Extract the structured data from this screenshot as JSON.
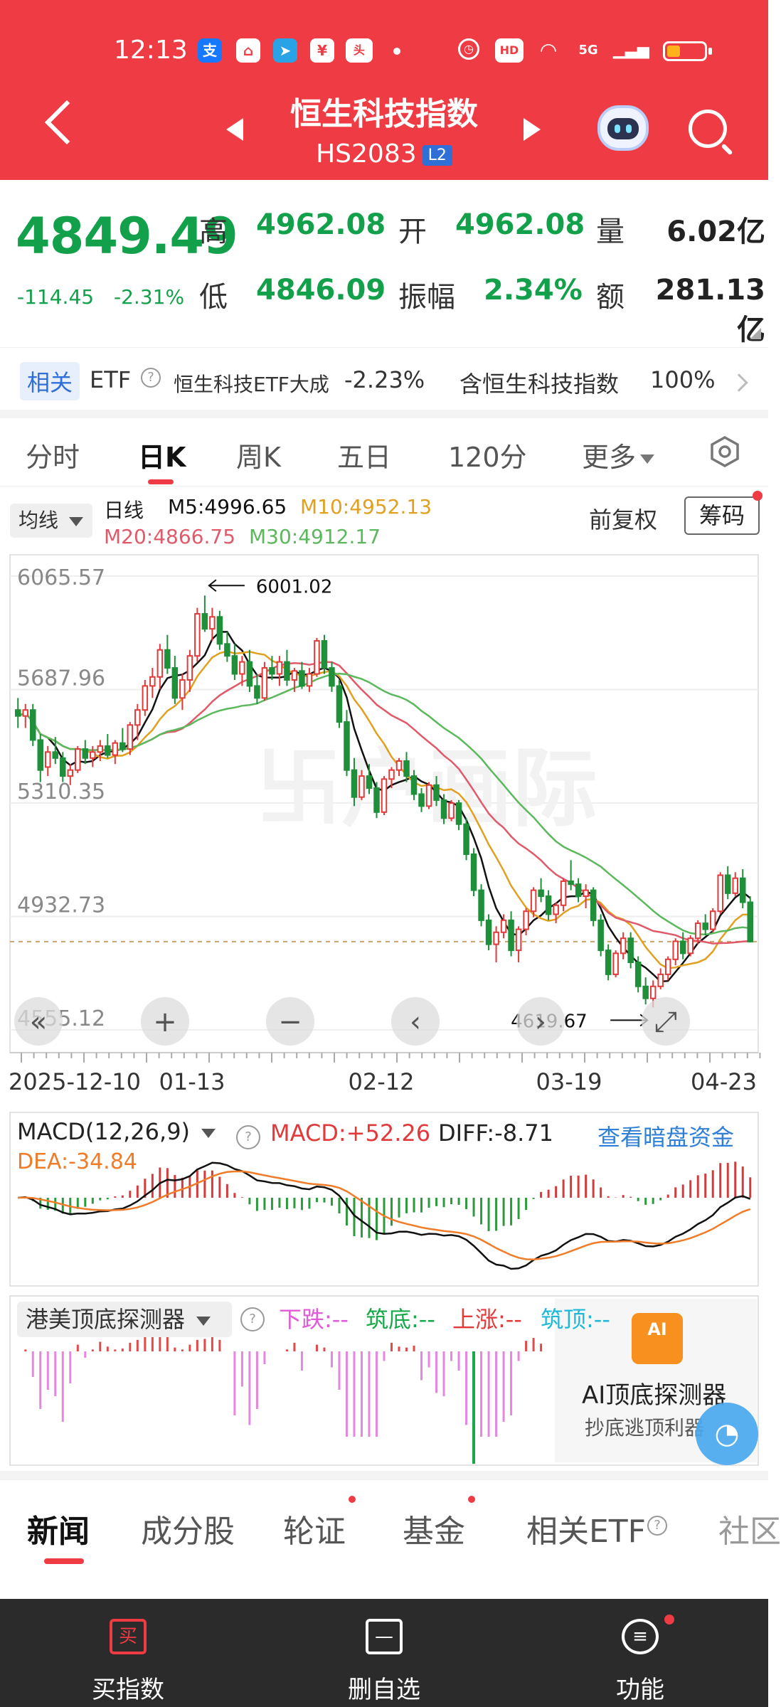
{
  "status_bar": {
    "time": "12:13",
    "icons": [
      "alipay-icon",
      "app-icon",
      "telegram-icon",
      "wallet-icon",
      "toutiao-icon"
    ],
    "right_icons": [
      "alarm-icon",
      "hd-icon",
      "wifi-icon",
      "5g-signal-icon",
      "signal-icon",
      "battery-icon"
    ],
    "hd_label": "HD",
    "net_label": "5G"
  },
  "header": {
    "title": "恒生科技指数",
    "code": "HS2083",
    "level_badge": "L2"
  },
  "quote": {
    "price": "4849.49",
    "change": "-114.45",
    "change_pct": "-2.31%",
    "high_label": "高",
    "high": "4962.08",
    "open_label": "开",
    "open": "4962.08",
    "volume_label": "量",
    "volume": "6.02亿",
    "low_label": "低",
    "low": "4846.09",
    "amplitude_label": "振幅",
    "amplitude": "2.34%",
    "amount_label": "额",
    "amount": "281.13亿"
  },
  "etf": {
    "tag": "相关",
    "etf_label": "ETF",
    "name": "恒生科技ETF大成",
    "change": "-2.23%",
    "contain_label": "含恒生科技指数",
    "contain_pct": "100%"
  },
  "period_tabs": [
    "分时",
    "日K",
    "周K",
    "五日",
    "120分",
    "更多"
  ],
  "ma_legend": {
    "selector": "均线",
    "daily": "日线",
    "m5": "M5:4996.65",
    "m10": "M10:4952.13",
    "m20": "M20:4866.75",
    "m30": "M30:4912.17",
    "adjust": "前复权",
    "chips": "筹码"
  },
  "chart_data": {
    "type": "candlestick",
    "y_axis_labels": [
      "6065.57",
      "5687.96",
      "5310.35",
      "4932.73",
      "4555.12"
    ],
    "ylim": [
      4555.12,
      6065.57
    ],
    "x_axis_labels": [
      "2025-12-10",
      "01-13",
      "02-12",
      "03-19",
      "04-23"
    ],
    "max_annotation": "6001.02",
    "min_annotation": "4619.67",
    "series": [
      {
        "name": "M5",
        "color": "#111111"
      },
      {
        "name": "M10",
        "color": "#e0a020"
      },
      {
        "name": "M20",
        "color": "#e05a6a"
      },
      {
        "name": "M30",
        "color": "#5cb85c"
      }
    ],
    "candles": [
      [
        5620,
        5660,
        5560,
        5600
      ],
      [
        5600,
        5640,
        5560,
        5620
      ],
      [
        5620,
        5640,
        5500,
        5520
      ],
      [
        5520,
        5540,
        5380,
        5420
      ],
      [
        5430,
        5500,
        5400,
        5480
      ],
      [
        5480,
        5530,
        5440,
        5460
      ],
      [
        5460,
        5480,
        5380,
        5400
      ],
      [
        5400,
        5440,
        5370,
        5420
      ],
      [
        5420,
        5500,
        5410,
        5490
      ],
      [
        5490,
        5520,
        5440,
        5460
      ],
      [
        5460,
        5500,
        5430,
        5480
      ],
      [
        5480,
        5520,
        5450,
        5500
      ],
      [
        5500,
        5540,
        5460,
        5470
      ],
      [
        5470,
        5520,
        5440,
        5510
      ],
      [
        5510,
        5560,
        5480,
        5490
      ],
      [
        5490,
        5580,
        5470,
        5570
      ],
      [
        5570,
        5640,
        5520,
        5620
      ],
      [
        5620,
        5720,
        5600,
        5700
      ],
      [
        5700,
        5760,
        5660,
        5730
      ],
      [
        5730,
        5840,
        5690,
        5820
      ],
      [
        5820,
        5870,
        5740,
        5760
      ],
      [
        5760,
        5800,
        5640,
        5660
      ],
      [
        5660,
        5740,
        5620,
        5720
      ],
      [
        5720,
        5820,
        5680,
        5800
      ],
      [
        5800,
        5960,
        5780,
        5940
      ],
      [
        5940,
        6001,
        5880,
        5890
      ],
      [
        5890,
        5960,
        5850,
        5930
      ],
      [
        5930,
        5950,
        5820,
        5840
      ],
      [
        5840,
        5880,
        5780,
        5800
      ],
      [
        5800,
        5840,
        5720,
        5740
      ],
      [
        5740,
        5800,
        5700,
        5780
      ],
      [
        5780,
        5820,
        5680,
        5700
      ],
      [
        5700,
        5740,
        5640,
        5660
      ],
      [
        5660,
        5780,
        5650,
        5760
      ],
      [
        5760,
        5800,
        5720,
        5740
      ],
      [
        5740,
        5800,
        5700,
        5780
      ],
      [
        5780,
        5820,
        5700,
        5720
      ],
      [
        5720,
        5760,
        5680,
        5750
      ],
      [
        5750,
        5780,
        5690,
        5700
      ],
      [
        5700,
        5760,
        5680,
        5740
      ],
      [
        5740,
        5860,
        5730,
        5850
      ],
      [
        5850,
        5870,
        5740,
        5760
      ],
      [
        5760,
        5780,
        5680,
        5700
      ],
      [
        5700,
        5720,
        5560,
        5580
      ],
      [
        5580,
        5620,
        5400,
        5420
      ],
      [
        5420,
        5460,
        5300,
        5330
      ],
      [
        5330,
        5420,
        5320,
        5400
      ],
      [
        5400,
        5440,
        5340,
        5360
      ],
      [
        5360,
        5380,
        5260,
        5280
      ],
      [
        5280,
        5400,
        5270,
        5390
      ],
      [
        5390,
        5430,
        5360,
        5420
      ],
      [
        5420,
        5460,
        5400,
        5450
      ],
      [
        5450,
        5480,
        5380,
        5400
      ],
      [
        5400,
        5420,
        5320,
        5340
      ],
      [
        5340,
        5360,
        5280,
        5300
      ],
      [
        5300,
        5380,
        5290,
        5370
      ],
      [
        5370,
        5400,
        5300,
        5320
      ],
      [
        5320,
        5340,
        5240,
        5260
      ],
      [
        5260,
        5320,
        5250,
        5310
      ],
      [
        5310,
        5320,
        5220,
        5240
      ],
      [
        5240,
        5260,
        5120,
        5140
      ],
      [
        5140,
        5160,
        5000,
        5020
      ],
      [
        5020,
        5040,
        4900,
        4920
      ],
      [
        4920,
        4940,
        4820,
        4840
      ],
      [
        4840,
        4900,
        4780,
        4880
      ],
      [
        4880,
        4940,
        4860,
        4920
      ],
      [
        4920,
        4950,
        4800,
        4820
      ],
      [
        4820,
        4900,
        4780,
        4890
      ],
      [
        4890,
        4960,
        4870,
        4950
      ],
      [
        4950,
        5030,
        4930,
        5020
      ],
      [
        5020,
        5060,
        4980,
        5000
      ],
      [
        5000,
        5020,
        4920,
        4940
      ],
      [
        4940,
        4980,
        4910,
        4970
      ],
      [
        4970,
        5060,
        4950,
        5050
      ],
      [
        5050,
        5120,
        5020,
        5040
      ],
      [
        5040,
        5060,
        4980,
        5000
      ],
      [
        5000,
        5040,
        4960,
        5020
      ],
      [
        5020,
        5030,
        4900,
        4920
      ],
      [
        4920,
        4940,
        4800,
        4820
      ],
      [
        4820,
        4840,
        4720,
        4740
      ],
      [
        4740,
        4820,
        4730,
        4810
      ],
      [
        4810,
        4880,
        4790,
        4860
      ],
      [
        4860,
        4880,
        4760,
        4780
      ],
      [
        4780,
        4800,
        4680,
        4700
      ],
      [
        4700,
        4730,
        4640,
        4660
      ],
      [
        4660,
        4720,
        4630,
        4700
      ],
      [
        4700,
        4760,
        4690,
        4740
      ],
      [
        4740,
        4800,
        4720,
        4790
      ],
      [
        4790,
        4860,
        4770,
        4850
      ],
      [
        4850,
        4880,
        4790,
        4810
      ],
      [
        4810,
        4870,
        4800,
        4860
      ],
      [
        4860,
        4920,
        4840,
        4910
      ],
      [
        4910,
        4940,
        4870,
        4890
      ],
      [
        4890,
        4960,
        4880,
        4950
      ],
      [
        4950,
        5080,
        4940,
        5070
      ],
      [
        5070,
        5100,
        4990,
        5010
      ],
      [
        5010,
        5080,
        5000,
        5060
      ],
      [
        5060,
        5090,
        4960,
        4980
      ],
      [
        4980,
        5000,
        4846,
        4849
      ]
    ]
  },
  "macd": {
    "selector": "MACD(12,26,9)",
    "macd": "MACD:+52.26",
    "diff": "DIFF:-8.71",
    "dea": "DEA:-34.84",
    "link": "查看暗盘资金"
  },
  "detector": {
    "selector": "港美顶底探测器",
    "fall": "下跌:--",
    "bottom": "筑底:--",
    "rise": "上涨:--",
    "top": "筑顶:--",
    "ai_title": "AI顶底探测器",
    "ai_sub": "抄底逃顶利器",
    "ai_badge": "AI"
  },
  "news_tabs": [
    "新闻",
    "成分股",
    "轮证",
    "基金",
    "相关ETF",
    "社区"
  ],
  "bottom_bar": {
    "buy": "买指数",
    "buy_icon": "买",
    "remove": "删自选",
    "func": "功能"
  }
}
